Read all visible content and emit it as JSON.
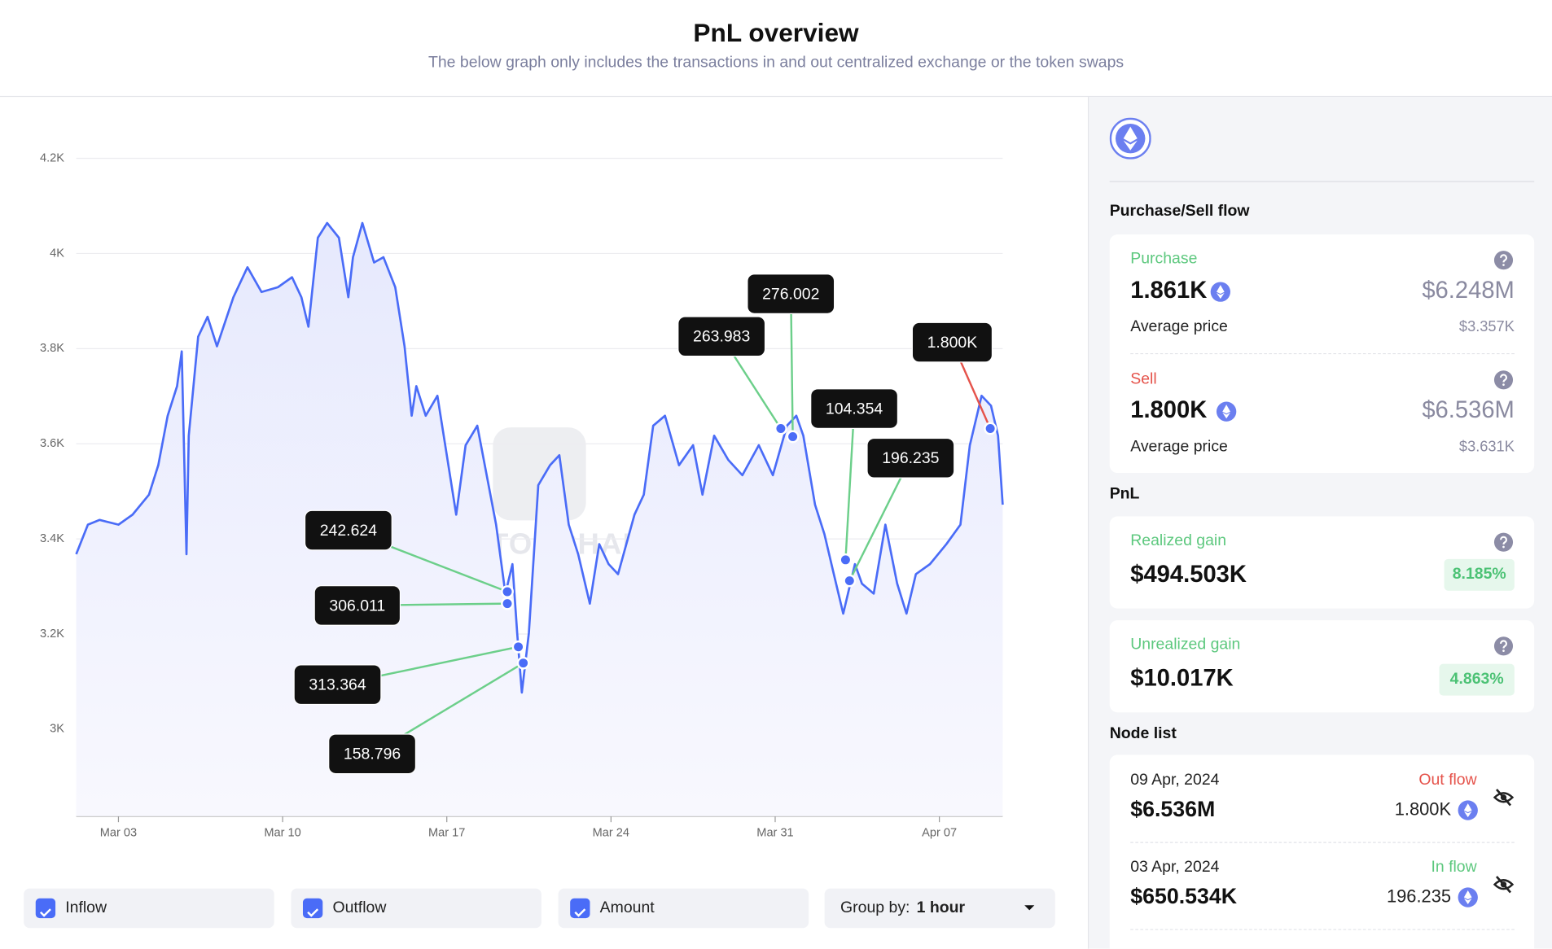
{
  "header": {
    "title": "PnL overview",
    "subtitle": "The below graph only includes the transactions in and out centralized exchange or the token swaps"
  },
  "chart_data": {
    "type": "line",
    "color": "#4a6cf7",
    "grid": true,
    "watermark": "SPOTONCHAIN",
    "x": [
      1.2,
      1.7,
      2.2,
      3,
      3.6,
      4.3,
      4.7,
      5.1,
      5.5,
      5.7,
      5.9,
      6.0,
      6.4,
      6.8,
      7.2,
      7.9,
      8.5,
      9.1,
      9.8,
      10.4,
      10.8,
      11.1,
      11.5,
      11.9,
      12.4,
      12.8,
      13.0,
      13.4,
      13.9,
      14.3,
      14.8,
      15.2,
      15.5,
      15.7,
      16.1,
      16.6,
      17.0,
      17.4,
      17.8,
      18.3,
      18.7,
      19.1,
      19.5,
      19.8,
      20.0,
      20.2,
      20.5,
      20.9,
      21.4,
      21.8,
      22.2,
      22.6,
      23.1,
      23.5,
      23.9,
      24.3,
      25.0,
      25.4,
      25.8,
      26.3,
      26.9,
      27.5,
      27.9,
      28.4,
      29.0,
      29.6,
      30.3,
      30.9,
      31.5,
      31.9,
      32.2,
      32.7,
      33.1,
      33.5,
      33.9,
      34.4,
      34.7,
      35.2,
      35.7,
      36.2,
      36.6,
      37.0,
      37.6,
      38.3,
      38.9,
      39.3,
      39.8,
      40.2,
      40.5,
      40.7
    ],
    "values": [
      3368,
      3430,
      3440,
      3430,
      3451,
      3493,
      3555,
      3659,
      3721,
      3794,
      3368,
      3617,
      3825,
      3867,
      3805,
      3908,
      3971,
      3919,
      3929,
      3950,
      3908,
      3846,
      4033,
      4064,
      4033,
      3908,
      3992,
      4064,
      3981,
      3992,
      3929,
      3805,
      3659,
      3721,
      3659,
      3701,
      3576,
      3451,
      3597,
      3638,
      3534,
      3430,
      3285,
      3347,
      3202,
      3077,
      3202,
      3513,
      3555,
      3576,
      3430,
      3368,
      3264,
      3389,
      3347,
      3326,
      3451,
      3493,
      3638,
      3659,
      3555,
      3597,
      3493,
      3617,
      3566,
      3534,
      3597,
      3534,
      3638,
      3659,
      3617,
      3472,
      3410,
      3326,
      3243,
      3347,
      3306,
      3285,
      3430,
      3306,
      3243,
      3326,
      3347,
      3389,
      3430,
      3597,
      3701,
      3680,
      3617,
      3472
    ],
    "xlim": [
      1.2,
      40.7
    ],
    "xticks": [
      {
        "value": 3,
        "label": "Mar 03"
      },
      {
        "value": 10,
        "label": "Mar 10"
      },
      {
        "value": 17,
        "label": "Mar 17"
      },
      {
        "value": 24,
        "label": "Mar 24"
      },
      {
        "value": 31,
        "label": "Mar 31"
      },
      {
        "value": 38,
        "label": "Apr 07"
      }
    ],
    "ylim": [
      2817,
      4250
    ],
    "yticks": [
      {
        "value": 3000,
        "label": "3K"
      },
      {
        "value": 3200,
        "label": "3.2K"
      },
      {
        "value": 3400,
        "label": "3.4K"
      },
      {
        "value": 3600,
        "label": "3.6K"
      },
      {
        "value": 3800,
        "label": "3.8K"
      },
      {
        "value": 4000,
        "label": "4K"
      },
      {
        "value": 4200,
        "label": "4.2K"
      }
    ],
    "nodes": [
      {
        "x": 19.58,
        "y": 3289,
        "label": "242.624",
        "color": "#6ccf8a"
      },
      {
        "x": 19.58,
        "y": 3264,
        "label": "306.011",
        "color": "#6ccf8a"
      },
      {
        "x": 20.05,
        "y": 3173,
        "label": "313.364",
        "color": "#6ccf8a"
      },
      {
        "x": 20.26,
        "y": 3139,
        "label": "158.796",
        "color": "#6ccf8a"
      },
      {
        "x": 31.24,
        "y": 3632,
        "label": "263.983",
        "color": "#6ccf8a"
      },
      {
        "x": 31.75,
        "y": 3615,
        "label": "276.002",
        "color": "#6ccf8a"
      },
      {
        "x": 34.0,
        "y": 3356,
        "label": "104.354",
        "color": "#6ccf8a"
      },
      {
        "x": 34.17,
        "y": 3312,
        "label": "196.235",
        "color": "#6ccf8a"
      },
      {
        "x": 40.17,
        "y": 3632,
        "label": "1.800K",
        "color": "#e5534b"
      }
    ]
  },
  "controls": {
    "checkboxes": [
      "Inflow",
      "Outflow",
      "Amount"
    ],
    "group_by_label": "Group by:",
    "group_by_value": "1 hour"
  },
  "panel": {
    "flow_title": "Purchase/Sell flow",
    "purchase": {
      "label": "Purchase",
      "amount": "1.861K",
      "usd": "$6.248M",
      "avg_label": "Average price",
      "avg": "$3.357K"
    },
    "sell": {
      "label": "Sell",
      "amount": "1.800K",
      "usd": "$6.536M",
      "avg_label": "Average price",
      "avg": "$3.631K"
    },
    "pnl_title": "PnL",
    "realized": {
      "label": "Realized gain",
      "value": "$494.503K",
      "pct": "8.185%"
    },
    "unrealized": {
      "label": "Unrealized gain",
      "value": "$10.017K",
      "pct": "4.863%"
    },
    "node_title": "Node list",
    "nodes": [
      {
        "date": "09 Apr, 2024",
        "usd": "$6.536M",
        "flow": "Out flow",
        "amount": "1.800K"
      },
      {
        "date": "03 Apr, 2024",
        "usd": "$650.534K",
        "flow": "In flow",
        "amount": "196.235"
      }
    ]
  }
}
